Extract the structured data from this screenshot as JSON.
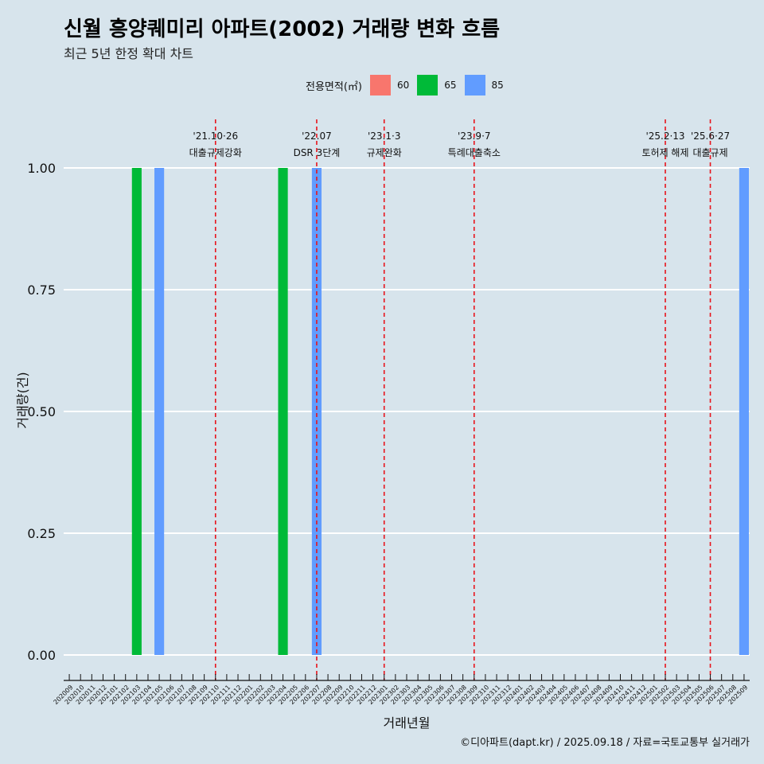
{
  "title": "신월 흥양퀘미리 아파트(2002) 거래량 변화 흐름",
  "subtitle": "최근 5년 한정 확대 차트",
  "caption": "©디아파트(dapt.kr) / 2025.09.18 / 자료=국토교통부 실거래가",
  "colors": {
    "background": "#d7e4ec",
    "grid": "#ffffff",
    "event_line": "#e8141c",
    "s60": "#f8766d",
    "s65": "#00ba38",
    "s85": "#619cff"
  },
  "chart_data": {
    "type": "bar",
    "title": "신월 흥양퀘미리 아파트(2002) 거래량 변화 흐름",
    "subtitle": "최근 5년 한정 확대 차트",
    "xlabel": "거래년월",
    "ylabel": "거래량(건)",
    "ylim": [
      0,
      1
    ],
    "yticks": [
      "0.00",
      "0.25",
      "0.50",
      "0.75",
      "1.00"
    ],
    "grid": true,
    "legend_position": "top",
    "legend_title": "전용면적(㎡)",
    "categories": [
      "202009",
      "202010",
      "202011",
      "202012",
      "202101",
      "202102",
      "202103",
      "202104",
      "202105",
      "202106",
      "202107",
      "202108",
      "202109",
      "202110",
      "202111",
      "202112",
      "202201",
      "202202",
      "202203",
      "202204",
      "202205",
      "202206",
      "202207",
      "202208",
      "202209",
      "202210",
      "202211",
      "202212",
      "202301",
      "202302",
      "202303",
      "202304",
      "202305",
      "202306",
      "202307",
      "202308",
      "202309",
      "202310",
      "202311",
      "202312",
      "202401",
      "202402",
      "202403",
      "202404",
      "202405",
      "202406",
      "202407",
      "202408",
      "202409",
      "202410",
      "202411",
      "202412",
      "202501",
      "202502",
      "202503",
      "202504",
      "202505",
      "202506",
      "202507",
      "202508",
      "202509"
    ],
    "series": [
      {
        "name": "60",
        "color": "#f8766d",
        "points": []
      },
      {
        "name": "65",
        "color": "#00ba38",
        "points": [
          {
            "x": "202103",
            "y": 1
          },
          {
            "x": "202204",
            "y": 1
          }
        ]
      },
      {
        "name": "85",
        "color": "#619cff",
        "points": [
          {
            "x": "202105",
            "y": 1
          },
          {
            "x": "202207",
            "y": 1
          },
          {
            "x": "202509",
            "y": 1
          }
        ]
      }
    ],
    "events": [
      {
        "x": "202110",
        "date": "'21.10·26",
        "label": "대출규제강화"
      },
      {
        "x": "202207",
        "date": "'22.07",
        "label": "DSR 3단계"
      },
      {
        "x": "202301",
        "date": "'23.1·3",
        "label": "규제완화"
      },
      {
        "x": "202309",
        "date": "'23.9·7",
        "label": "특례대출축소"
      },
      {
        "x": "202502",
        "date": "'25.2·13",
        "label": "토허제 해제"
      },
      {
        "x": "202506",
        "date": "'25.6·27",
        "label": "대출규제"
      }
    ]
  }
}
